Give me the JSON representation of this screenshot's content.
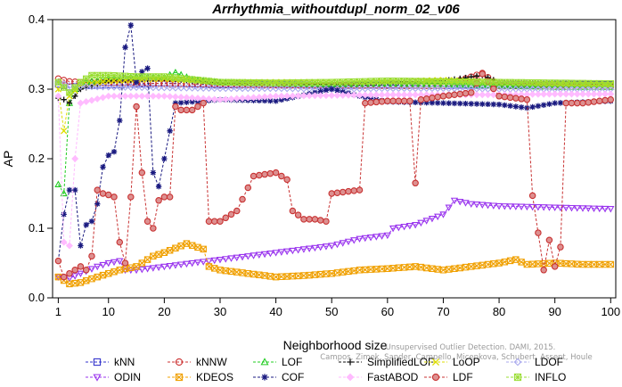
{
  "chart_data": {
    "type": "line",
    "title": "Arrhythmia_withoutdupl_norm_02_v06",
    "xlabel": "Neighborhood size",
    "ylabel": "AP",
    "xlim": [
      1,
      100
    ],
    "ylim": [
      0,
      0.4
    ],
    "xticks": [
      1,
      10,
      20,
      30,
      40,
      50,
      60,
      70,
      80,
      90,
      100
    ],
    "yticks": [
      0.0,
      0.1,
      0.2,
      0.3,
      0.4
    ],
    "ytick_labels": [
      "0.0",
      "0.1",
      "0.2",
      "0.3",
      "0.4"
    ],
    "legend_position": "bottom",
    "watermark": [
      "Campos, Zimek, Sander, Campello, Micenkova, Schubert, Assent, Houle",
      "Unsupervised Outlier Detection. DAMI, 2015."
    ],
    "series": [
      {
        "name": "kNN",
        "color": "#3333cc",
        "marker": "square",
        "points": [
          [
            1,
            0.307
          ],
          [
            3,
            0.303
          ],
          [
            5,
            0.305
          ],
          [
            10,
            0.306
          ],
          [
            15,
            0.307
          ],
          [
            20,
            0.309
          ],
          [
            30,
            0.306
          ],
          [
            40,
            0.307
          ],
          [
            50,
            0.305
          ],
          [
            60,
            0.306
          ],
          [
            70,
            0.305
          ],
          [
            80,
            0.306
          ],
          [
            90,
            0.307
          ],
          [
            100,
            0.307
          ]
        ]
      },
      {
        "name": "kNNW",
        "color": "#cc3333",
        "marker": "circle",
        "points": [
          [
            1,
            0.315
          ],
          [
            3,
            0.311
          ],
          [
            5,
            0.31
          ],
          [
            10,
            0.309
          ],
          [
            15,
            0.309
          ],
          [
            20,
            0.308
          ],
          [
            30,
            0.307
          ],
          [
            40,
            0.306
          ],
          [
            50,
            0.306
          ],
          [
            60,
            0.305
          ],
          [
            70,
            0.305
          ],
          [
            77,
            0.323
          ],
          [
            80,
            0.305
          ],
          [
            90,
            0.304
          ],
          [
            100,
            0.304
          ]
        ]
      },
      {
        "name": "LOF",
        "color": "#22cc22",
        "marker": "triangle-up",
        "points": [
          [
            1,
            0.163
          ],
          [
            2,
            0.15
          ],
          [
            3,
            0.28
          ],
          [
            4,
            0.3
          ],
          [
            6,
            0.31
          ],
          [
            10,
            0.315
          ],
          [
            15,
            0.318
          ],
          [
            20,
            0.317
          ],
          [
            22,
            0.324
          ],
          [
            25,
            0.314
          ],
          [
            30,
            0.31
          ],
          [
            40,
            0.308
          ],
          [
            50,
            0.307
          ],
          [
            60,
            0.308
          ],
          [
            70,
            0.307
          ],
          [
            80,
            0.305
          ],
          [
            90,
            0.303
          ],
          [
            100,
            0.303
          ]
        ]
      },
      {
        "name": "SimplifiedLOF",
        "color": "#111111",
        "marker": "plus",
        "points": [
          [
            1,
            0.287
          ],
          [
            2,
            0.285
          ],
          [
            3,
            0.28
          ],
          [
            5,
            0.3
          ],
          [
            10,
            0.312
          ],
          [
            20,
            0.315
          ],
          [
            30,
            0.309
          ],
          [
            40,
            0.308
          ],
          [
            50,
            0.307
          ],
          [
            60,
            0.31
          ],
          [
            70,
            0.312
          ],
          [
            77,
            0.32
          ],
          [
            80,
            0.31
          ],
          [
            90,
            0.309
          ],
          [
            100,
            0.308
          ]
        ]
      },
      {
        "name": "LoOP",
        "color": "#dddd00",
        "marker": "x",
        "points": [
          [
            1,
            0.3
          ],
          [
            2,
            0.24
          ],
          [
            3,
            0.29
          ],
          [
            5,
            0.306
          ],
          [
            10,
            0.312
          ],
          [
            20,
            0.315
          ],
          [
            30,
            0.31
          ],
          [
            40,
            0.31
          ],
          [
            50,
            0.31
          ],
          [
            60,
            0.311
          ],
          [
            70,
            0.313
          ],
          [
            80,
            0.31
          ],
          [
            90,
            0.308
          ],
          [
            100,
            0.307
          ]
        ]
      },
      {
        "name": "LDOF",
        "color": "#aaaaee",
        "marker": "diamond",
        "points": [
          [
            1,
            0.31
          ],
          [
            3,
            0.305
          ],
          [
            5,
            0.304
          ],
          [
            10,
            0.303
          ],
          [
            20,
            0.302
          ],
          [
            30,
            0.301
          ],
          [
            40,
            0.301
          ],
          [
            50,
            0.3
          ],
          [
            60,
            0.301
          ],
          [
            70,
            0.301
          ],
          [
            80,
            0.3
          ],
          [
            90,
            0.3
          ],
          [
            100,
            0.3
          ]
        ]
      },
      {
        "name": "ODIN",
        "color": "#9933ee",
        "marker": "triangle-down",
        "points": [
          [
            1,
            0.03
          ],
          [
            3,
            0.028
          ],
          [
            5,
            0.035
          ],
          [
            8,
            0.045
          ],
          [
            10,
            0.05
          ],
          [
            12,
            0.053
          ],
          [
            13,
            0.04
          ],
          [
            15,
            0.04
          ],
          [
            20,
            0.045
          ],
          [
            25,
            0.05
          ],
          [
            30,
            0.055
          ],
          [
            35,
            0.06
          ],
          [
            40,
            0.065
          ],
          [
            45,
            0.07
          ],
          [
            50,
            0.075
          ],
          [
            55,
            0.085
          ],
          [
            60,
            0.09
          ],
          [
            61,
            0.1
          ],
          [
            65,
            0.105
          ],
          [
            70,
            0.12
          ],
          [
            72,
            0.14
          ],
          [
            75,
            0.135
          ],
          [
            80,
            0.132
          ],
          [
            90,
            0.13
          ],
          [
            100,
            0.128
          ]
        ]
      },
      {
        "name": "KDEOS",
        "color": "#f0a000",
        "marker": "square-x",
        "points": [
          [
            1,
            0.03
          ],
          [
            3,
            0.02
          ],
          [
            5,
            0.022
          ],
          [
            8,
            0.03
          ],
          [
            10,
            0.035
          ],
          [
            12,
            0.04
          ],
          [
            15,
            0.045
          ],
          [
            18,
            0.06
          ],
          [
            20,
            0.065
          ],
          [
            24,
            0.078
          ],
          [
            27,
            0.07
          ],
          [
            28,
            0.045
          ],
          [
            30,
            0.04
          ],
          [
            35,
            0.035
          ],
          [
            40,
            0.03
          ],
          [
            45,
            0.032
          ],
          [
            50,
            0.035
          ],
          [
            55,
            0.04
          ],
          [
            60,
            0.042
          ],
          [
            65,
            0.045
          ],
          [
            70,
            0.04
          ],
          [
            75,
            0.045
          ],
          [
            80,
            0.05
          ],
          [
            83,
            0.055
          ],
          [
            85,
            0.048
          ],
          [
            90,
            0.05
          ],
          [
            95,
            0.048
          ],
          [
            100,
            0.048
          ]
        ]
      },
      {
        "name": "COF",
        "color": "#1a1a80",
        "marker": "star",
        "points": [
          [
            1,
            0.053
          ],
          [
            2,
            0.12
          ],
          [
            3,
            0.155
          ],
          [
            4,
            0.155
          ],
          [
            5,
            0.075
          ],
          [
            6,
            0.105
          ],
          [
            7,
            0.11
          ],
          [
            8,
            0.135
          ],
          [
            9,
            0.188
          ],
          [
            10,
            0.205
          ],
          [
            11,
            0.21
          ],
          [
            12,
            0.255
          ],
          [
            13,
            0.36
          ],
          [
            14,
            0.392
          ],
          [
            15,
            0.31
          ],
          [
            16,
            0.325
          ],
          [
            17,
            0.33
          ],
          [
            18,
            0.18
          ],
          [
            19,
            0.16
          ],
          [
            20,
            0.2
          ],
          [
            22,
            0.28
          ],
          [
            30,
            0.285
          ],
          [
            40,
            0.283
          ],
          [
            50,
            0.3
          ],
          [
            55,
            0.29
          ],
          [
            60,
            0.282
          ],
          [
            70,
            0.28
          ],
          [
            80,
            0.278
          ],
          [
            85,
            0.273
          ],
          [
            90,
            0.28
          ],
          [
            100,
            0.283
          ]
        ]
      },
      {
        "name": "FastABOD",
        "color": "#ffbbff",
        "marker": "diamond-filled",
        "points": [
          [
            1,
            0.29
          ],
          [
            2,
            0.08
          ],
          [
            3,
            0.075
          ],
          [
            4,
            0.2
          ],
          [
            5,
            0.28
          ],
          [
            10,
            0.29
          ],
          [
            20,
            0.29
          ],
          [
            30,
            0.285
          ],
          [
            40,
            0.29
          ],
          [
            50,
            0.291
          ],
          [
            60,
            0.292
          ],
          [
            70,
            0.292
          ],
          [
            80,
            0.292
          ],
          [
            90,
            0.293
          ],
          [
            100,
            0.293
          ]
        ]
      },
      {
        "name": "LDF",
        "color": "#c83232",
        "marker": "circle-filled",
        "points": [
          [
            1,
            0.053
          ],
          [
            2,
            0.03
          ],
          [
            3,
            0.035
          ],
          [
            4,
            0.04
          ],
          [
            5,
            0.045
          ],
          [
            6,
            0.04
          ],
          [
            7,
            0.06
          ],
          [
            8,
            0.155
          ],
          [
            9,
            0.15
          ],
          [
            10,
            0.148
          ],
          [
            11,
            0.145
          ],
          [
            12,
            0.08
          ],
          [
            13,
            0.05
          ],
          [
            14,
            0.145
          ],
          [
            15,
            0.275
          ],
          [
            16,
            0.18
          ],
          [
            17,
            0.11
          ],
          [
            18,
            0.1
          ],
          [
            19,
            0.14
          ],
          [
            20,
            0.145
          ],
          [
            21,
            0.145
          ],
          [
            22,
            0.275
          ],
          [
            23,
            0.27
          ],
          [
            25,
            0.27
          ],
          [
            27,
            0.28
          ],
          [
            28,
            0.11
          ],
          [
            30,
            0.11
          ],
          [
            33,
            0.125
          ],
          [
            36,
            0.175
          ],
          [
            40,
            0.18
          ],
          [
            42,
            0.17
          ],
          [
            43,
            0.125
          ],
          [
            45,
            0.113
          ],
          [
            47,
            0.113
          ],
          [
            49,
            0.11
          ],
          [
            50,
            0.15
          ],
          [
            55,
            0.155
          ],
          [
            56,
            0.28
          ],
          [
            60,
            0.283
          ],
          [
            64,
            0.283
          ],
          [
            65,
            0.165
          ],
          [
            66,
            0.285
          ],
          [
            70,
            0.29
          ],
          [
            75,
            0.295
          ],
          [
            77,
            0.322
          ],
          [
            80,
            0.29
          ],
          [
            85,
            0.285
          ],
          [
            86,
            0.147
          ],
          [
            88,
            0.04
          ],
          [
            89,
            0.083
          ],
          [
            90,
            0.045
          ],
          [
            91,
            0.073
          ],
          [
            92,
            0.28
          ],
          [
            95,
            0.28
          ],
          [
            100,
            0.285
          ]
        ]
      },
      {
        "name": "INFLO",
        "color": "#99dd33",
        "marker": "square-star",
        "points": [
          [
            1,
            0.31
          ],
          [
            3,
            0.295
          ],
          [
            5,
            0.31
          ],
          [
            7,
            0.32
          ],
          [
            10,
            0.32
          ],
          [
            15,
            0.318
          ],
          [
            20,
            0.318
          ],
          [
            30,
            0.31
          ],
          [
            40,
            0.309
          ],
          [
            50,
            0.31
          ],
          [
            60,
            0.312
          ],
          [
            70,
            0.311
          ],
          [
            80,
            0.31
          ],
          [
            90,
            0.309
          ],
          [
            100,
            0.308
          ]
        ]
      }
    ]
  }
}
